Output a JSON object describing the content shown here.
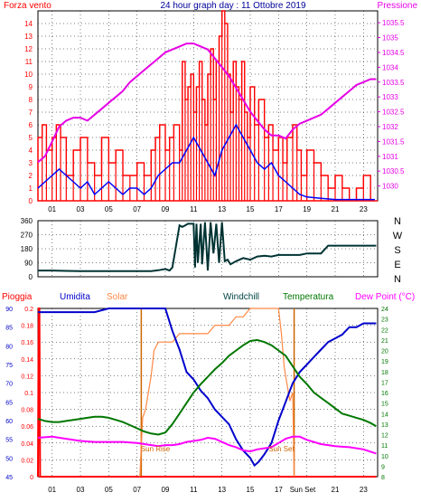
{
  "colors": {
    "wind": "#ff0000",
    "gust_blue": "#0000ff",
    "pressure": "#e600e6",
    "direction": "#003333",
    "rain": "#ff0000",
    "humidity": "#0000cc",
    "solar": "#ff8844",
    "windchill": "#004444",
    "temperature": "#007700",
    "dewpoint": "#ff00ff",
    "axis": "#000000",
    "grid": "#000000",
    "sun_marker": "#cc6600"
  },
  "chart_data": [
    {
      "type": "line",
      "title": "24 hour graph day : 11 Ottobre 2019",
      "left_label": "Forza vento",
      "right_label": "Pressione",
      "x_ticks": [
        "01",
        "03",
        "05",
        "07",
        "09",
        "11",
        "13",
        "15",
        "17",
        "19",
        "21",
        "23"
      ],
      "left_ylim": [
        0,
        15
      ],
      "left_ticks": [
        "0",
        "1",
        "2",
        "3",
        "4",
        "5",
        "6",
        "7",
        "8",
        "9",
        "10",
        "11",
        "12",
        "13",
        "14"
      ],
      "right_ylim": [
        1029.5,
        1035.9
      ],
      "right_ticks": [
        "1030",
        "1030.5",
        "1031",
        "1031.5",
        "1032",
        "1032.5",
        "1033",
        "1033.5",
        "1034",
        "1034.5",
        "1035",
        "1035.5"
      ],
      "grid": true,
      "series": [
        {
          "name": "Forza vento",
          "kind": "bars",
          "axis": "left",
          "x": [
            0,
            0.3,
            0.6,
            1,
            1.3,
            1.6,
            2,
            2.5,
            3,
            3.5,
            4,
            4.5,
            5,
            5.5,
            6,
            6.5,
            7,
            7.5,
            8,
            8.3,
            8.6,
            9,
            9.3,
            9.6,
            10,
            10.2,
            10.4,
            10.6,
            10.8,
            11,
            11.2,
            11.4,
            11.6,
            11.8,
            12,
            12.2,
            12.4,
            12.6,
            12.8,
            13,
            13.2,
            13.4,
            13.6,
            13.8,
            14,
            14.2,
            14.4,
            14.6,
            14.8,
            15,
            15.3,
            15.6,
            16,
            16.3,
            16.6,
            17,
            17.3,
            17.6,
            18,
            18.3,
            18.6,
            19,
            19.5,
            20,
            20.5,
            21,
            21.5,
            22,
            22.5,
            23,
            23.5
          ],
          "values": [
            5,
            6,
            4,
            5,
            6,
            5,
            2,
            4,
            5,
            3,
            2,
            5,
            3,
            4,
            2,
            2,
            3,
            2,
            4,
            5,
            6,
            4,
            5,
            6,
            4,
            11,
            8,
            9,
            10,
            7,
            9,
            11,
            8,
            6,
            10,
            12,
            8,
            11,
            13,
            15,
            14,
            10,
            7,
            11,
            9,
            8,
            11,
            7,
            5,
            9,
            6,
            8,
            5,
            6,
            4,
            5,
            3,
            5,
            6,
            4,
            2,
            4,
            3,
            2,
            1,
            2,
            1,
            0,
            1,
            2,
            0
          ],
          "hi_res": false
        },
        {
          "name": "Media vento",
          "kind": "line",
          "axis": "left",
          "x": [
            0,
            0.5,
            1,
            1.5,
            2,
            2.5,
            3,
            3.5,
            4,
            4.5,
            5,
            5.5,
            6,
            6.5,
            7,
            7.5,
            8,
            8.5,
            9,
            9.5,
            10,
            10.5,
            11,
            11.5,
            12,
            12.5,
            13,
            13.5,
            14,
            14.5,
            15,
            15.5,
            16,
            16.5,
            17,
            17.5,
            18,
            18.5,
            19,
            20,
            21,
            22,
            23,
            23.8
          ],
          "values": [
            1,
            1.5,
            2,
            2.5,
            2,
            1.5,
            1,
            1.5,
            0.5,
            1,
            1.5,
            1,
            0.5,
            1,
            1,
            0.5,
            1,
            2,
            2.5,
            3,
            3,
            4,
            5,
            4,
            3,
            2,
            4,
            5,
            6,
            5,
            4,
            3,
            2.5,
            3,
            2,
            1.5,
            1,
            0.5,
            0.3,
            0.2,
            0.1,
            0.1,
            0.1,
            0.1
          ]
        },
        {
          "name": "Pressione",
          "kind": "line",
          "axis": "right",
          "x": [
            0,
            0.5,
            1,
            1.5,
            2,
            2.5,
            3,
            3.5,
            4,
            4.5,
            5,
            5.5,
            6,
            6.5,
            7,
            7.5,
            8,
            8.5,
            9,
            9.5,
            10,
            10.5,
            11,
            11.5,
            12,
            12.5,
            13,
            13.5,
            14,
            14.5,
            15,
            15.5,
            16,
            16.5,
            17,
            17.5,
            18,
            18.5,
            19,
            19.5,
            20,
            20.5,
            21,
            21.5,
            22,
            22.5,
            23,
            23.5,
            23.9
          ],
          "values": [
            1030.8,
            1031.0,
            1031.5,
            1032.0,
            1032.2,
            1032.3,
            1032.3,
            1032.2,
            1032.4,
            1032.6,
            1032.8,
            1033.0,
            1033.2,
            1033.5,
            1033.7,
            1033.9,
            1034.1,
            1034.3,
            1034.5,
            1034.6,
            1034.7,
            1034.8,
            1034.8,
            1034.7,
            1034.6,
            1034.3,
            1034.0,
            1033.7,
            1033.3,
            1032.9,
            1032.5,
            1032.2,
            1031.9,
            1031.7,
            1031.7,
            1031.6,
            1031.9,
            1032.1,
            1032.2,
            1032.3,
            1032.4,
            1032.6,
            1032.8,
            1033.0,
            1033.2,
            1033.4,
            1033.5,
            1033.6,
            1033.6
          ]
        }
      ]
    },
    {
      "type": "line",
      "title": "",
      "right_label": "N W S E N",
      "right_letters": [
        "N",
        "W",
        "S",
        "E",
        "N"
      ],
      "ylim": [
        0,
        360
      ],
      "y_ticks": [
        "0",
        "90",
        "180",
        "270",
        "360"
      ],
      "grid": true,
      "series": [
        {
          "name": "Direzione",
          "x": [
            0,
            1,
            2,
            3,
            4,
            5,
            6,
            7,
            8,
            8.5,
            9,
            9.3,
            9.5,
            10,
            10.2,
            10.4,
            10.6,
            11,
            11.1,
            11.2,
            11.3,
            11.5,
            11.6,
            11.8,
            12,
            12.2,
            12.4,
            12.6,
            12.8,
            13,
            13.2,
            13.4,
            13.6,
            14,
            14.5,
            15,
            15.5,
            16,
            16.5,
            17,
            17.5,
            18,
            18.5,
            19,
            20,
            20.5,
            21,
            22,
            23,
            23.9
          ],
          "values": [
            40,
            40,
            38,
            36,
            36,
            36,
            36,
            36,
            36,
            42,
            50,
            40,
            60,
            330,
            320,
            330,
            340,
            340,
            60,
            340,
            90,
            340,
            80,
            350,
            40,
            350,
            150,
            340,
            90,
            350,
            100,
            110,
            80,
            100,
            120,
            110,
            130,
            135,
            130,
            140,
            140,
            140,
            140,
            150,
            150,
            200,
            200,
            200,
            200,
            200
          ]
        }
      ]
    },
    {
      "type": "line",
      "title": "",
      "labels": [
        "Pioggia",
        "Umidita",
        "Solar",
        "Windchill",
        "Temperatura",
        "Dew Point (°C)"
      ],
      "x_ticks": [
        "01",
        "03",
        "05",
        "07",
        "09",
        "11",
        "13",
        "15",
        "17",
        "19",
        "21",
        "23"
      ],
      "sun_rise_label": "Sun Rise",
      "sun_set_label": "Sun Set",
      "sun_set_tick_label": "Sun Set",
      "rain_ylim": [
        0,
        0.2
      ],
      "rain_ticks": [
        "0",
        "0.02",
        "0.04",
        "0.06",
        "0.08",
        "0.1",
        "0.12",
        "0.14",
        "0.16",
        "0.18",
        "0.2"
      ],
      "hum_ylim": [
        45,
        90
      ],
      "hum_ticks": [
        "45",
        "50",
        "55",
        "60",
        "65",
        "70",
        "75",
        "80",
        "85",
        "90"
      ],
      "temp_ylim": [
        8,
        24
      ],
      "temp_ticks": [
        "8",
        "9",
        "10",
        "11",
        "12",
        "13",
        "14",
        "15",
        "16",
        "17",
        "18",
        "19",
        "20",
        "21",
        "22",
        "23",
        "24"
      ],
      "grid": true,
      "series": [
        {
          "name": "Pioggia",
          "axis": "rain",
          "x": [
            0,
            0.05,
            0.1,
            0.15,
            23.9
          ],
          "values": [
            0,
            0.2,
            0.2,
            0,
            0
          ]
        },
        {
          "name": "Umidita",
          "axis": "hum",
          "x": [
            0,
            1,
            2,
            3,
            4,
            5,
            6,
            7,
            8,
            8.5,
            9,
            9.5,
            10,
            10.5,
            11,
            11.5,
            12,
            12.5,
            13,
            13.5,
            14,
            14.5,
            15,
            15.3,
            15.6,
            16,
            16.5,
            17,
            17.5,
            18,
            18.5,
            19,
            19.5,
            20,
            20.5,
            21,
            21.5,
            22,
            22.5,
            23,
            23.9
          ],
          "values": [
            89,
            89,
            89,
            89,
            89,
            90,
            90,
            90,
            90,
            90,
            90,
            84,
            79,
            73,
            71,
            68,
            66,
            63,
            61,
            59,
            55,
            52,
            50,
            48,
            49,
            51,
            54,
            60,
            65,
            70,
            73,
            75,
            77,
            79,
            81,
            82,
            83,
            85,
            85,
            86,
            86
          ]
        },
        {
          "name": "Solar",
          "axis": "rain",
          "x": [
            7.2,
            7.4,
            7.6,
            7.8,
            8,
            8.2,
            8.5,
            9,
            9.5,
            10,
            10.5,
            11,
            11.5,
            12,
            12.5,
            13,
            13.5,
            14,
            14.5,
            15,
            15.5,
            16,
            16.5,
            17,
            17.2,
            17.4,
            17.6,
            17.8,
            18,
            18.1
          ],
          "values": [
            0,
            0.07,
            0.08,
            0.1,
            0.12,
            0.15,
            0.16,
            0.16,
            0.16,
            0.17,
            0.17,
            0.17,
            0.17,
            0.17,
            0.18,
            0.18,
            0.18,
            0.19,
            0.19,
            0.2,
            0.2,
            0.2,
            0.2,
            0.2,
            0.17,
            0.13,
            0.11,
            0.09,
            0.1,
            0
          ]
        },
        {
          "name": "Temperatura",
          "axis": "temp",
          "x": [
            0,
            0.5,
            1,
            1.5,
            2,
            2.5,
            3,
            3.5,
            4,
            4.5,
            5,
            5.5,
            6,
            6.5,
            7,
            7.5,
            8,
            8.5,
            9,
            9.5,
            10,
            10.5,
            11,
            11.5,
            12,
            12.5,
            13,
            13.5,
            14,
            14.5,
            15,
            15.5,
            16,
            16.5,
            17,
            17.5,
            18,
            18.5,
            19,
            19.5,
            20,
            20.5,
            21,
            21.5,
            22,
            22.5,
            23,
            23.5,
            23.9
          ],
          "values": [
            13.5,
            13.3,
            13.2,
            13.2,
            13.3,
            13.4,
            13.5,
            13.6,
            13.7,
            13.7,
            13.6,
            13.4,
            13.2,
            12.9,
            12.6,
            12.3,
            12.1,
            12.0,
            12.2,
            13.0,
            14.0,
            15.0,
            16.0,
            16.8,
            17.5,
            18.2,
            18.8,
            19.5,
            20.0,
            20.5,
            20.9,
            21.0,
            20.8,
            20.5,
            20.0,
            19.5,
            18.5,
            17.5,
            16.8,
            16.0,
            15.5,
            15.0,
            14.5,
            14.0,
            13.8,
            13.6,
            13.4,
            13.1,
            12.8
          ]
        },
        {
          "name": "Dew Point",
          "axis": "temp",
          "x": [
            0,
            1,
            2,
            3,
            4,
            5,
            6,
            7,
            8,
            8.5,
            9,
            9.5,
            10,
            10.5,
            11,
            11.5,
            12,
            12.5,
            13,
            13.5,
            14,
            14.5,
            15,
            15.5,
            16,
            16.5,
            17,
            17.5,
            18,
            18.5,
            19,
            20,
            21,
            22,
            23,
            23.9
          ],
          "values": [
            11.7,
            11.8,
            11.6,
            11.4,
            11.3,
            11.3,
            11.3,
            11.2,
            11.0,
            10.9,
            11.0,
            11.0,
            11.1,
            11.3,
            11.4,
            11.5,
            11.7,
            11.6,
            11.3,
            11.0,
            10.8,
            10.5,
            10.4,
            10.6,
            10.7,
            10.8,
            11.2,
            11.6,
            11.8,
            11.8,
            11.5,
            11.1,
            10.9,
            10.8,
            10.6,
            10.2
          ]
        }
      ]
    }
  ]
}
